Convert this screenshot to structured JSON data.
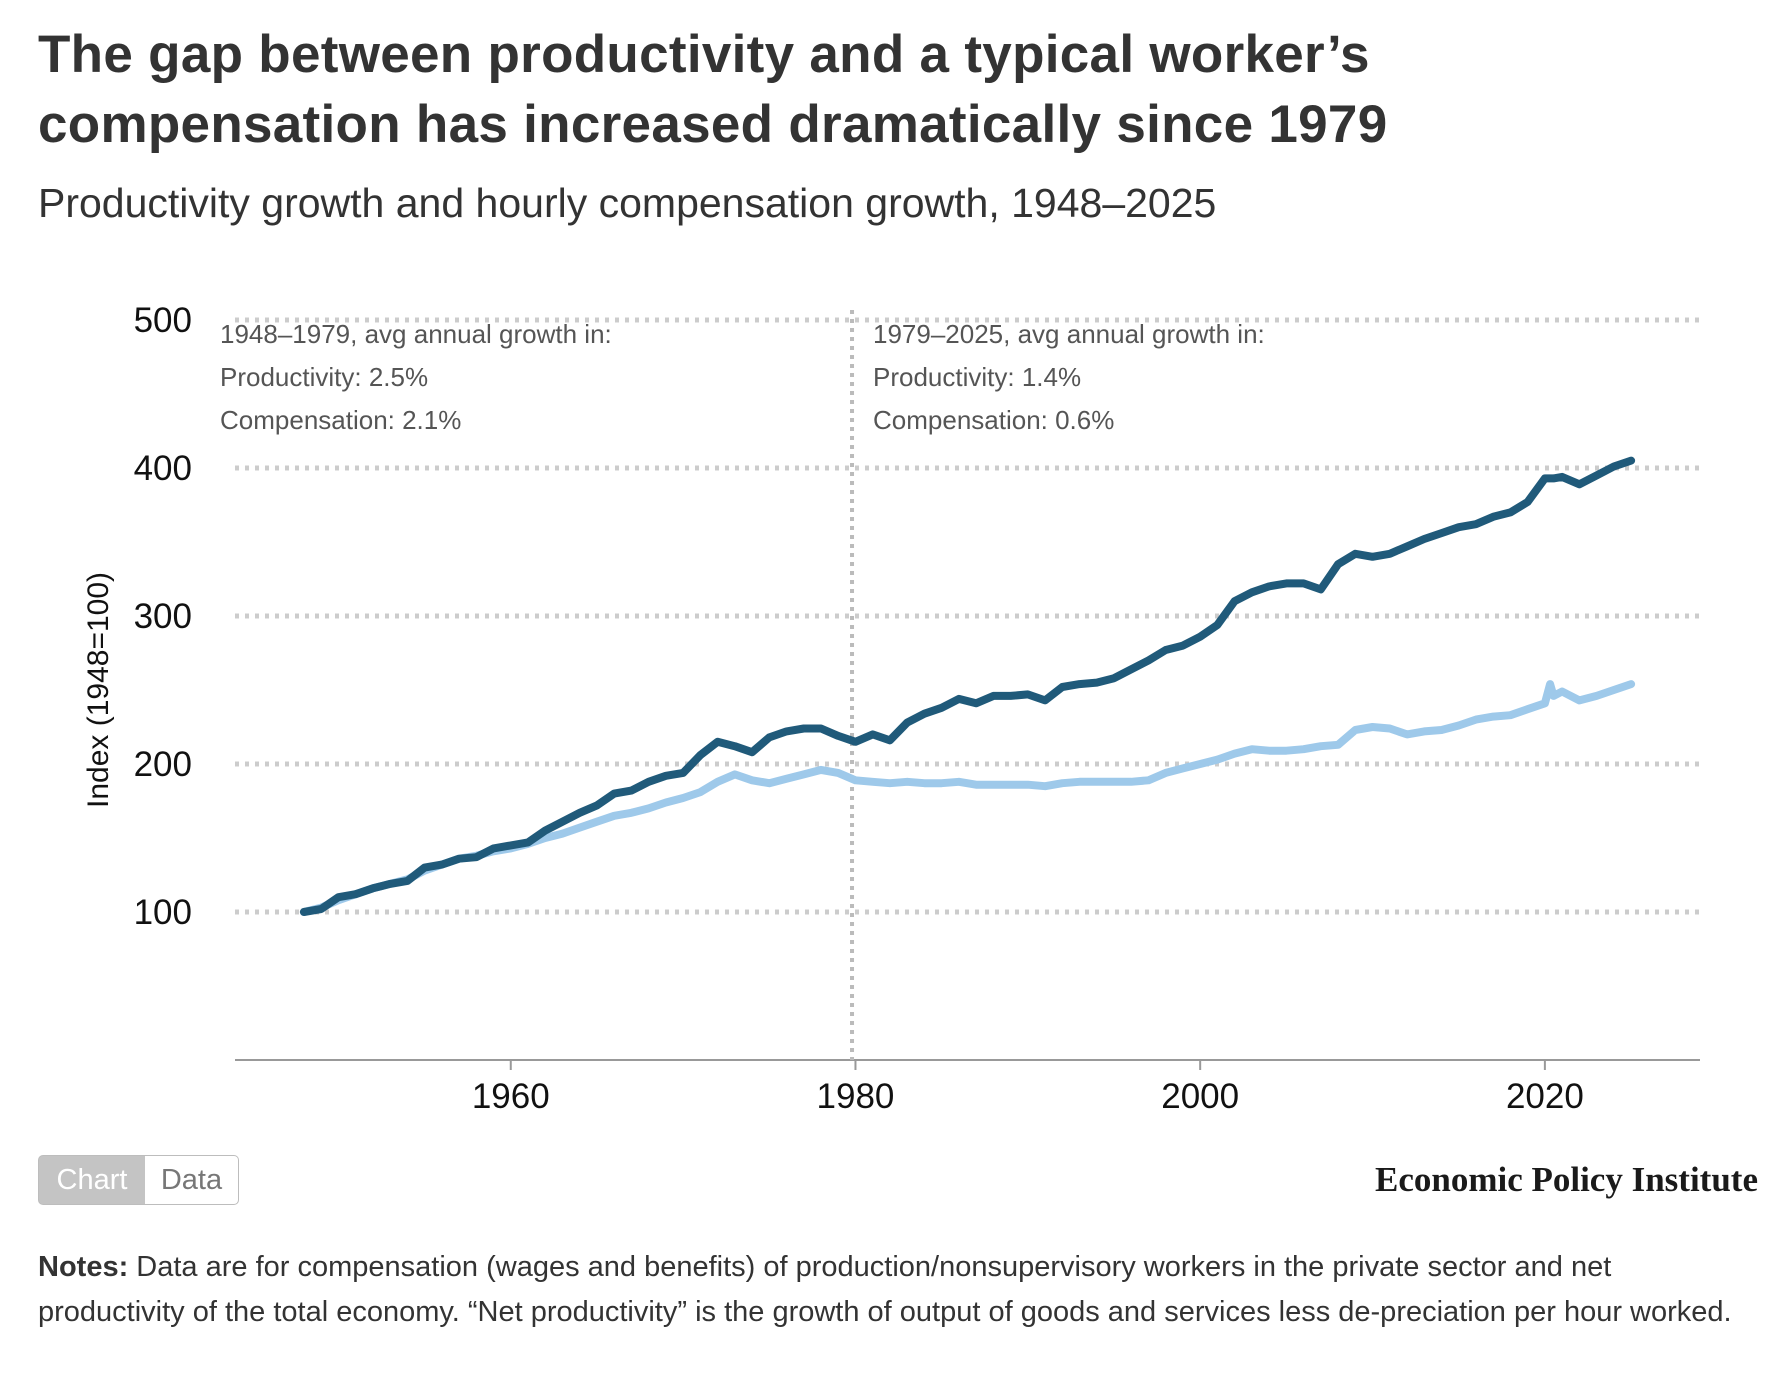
{
  "title": "The gap between productivity and a typical worker’s compensation has increased dramatically since 1979",
  "subtitle": "Productivity growth and hourly compensation growth, 1948–2025",
  "colors": {
    "productivity": "#205a7a",
    "compensation": "#9ec9ea",
    "grid": "#cccccc",
    "axis": "#999999"
  },
  "annotations": [
    {
      "lines": [
        "1948–1979, avg annual growth in:",
        "Productivity: 2.5%",
        "Compensation: 2.1%"
      ]
    },
    {
      "lines": [
        "1979–2025, avg annual growth in:",
        "Productivity: 1.4%",
        "Compensation: 0.6%"
      ]
    }
  ],
  "toggle": {
    "chart_label": "Chart",
    "data_label": "Data"
  },
  "publisher": "Economic Policy Institute",
  "notes": {
    "label": "Notes:",
    "text": " Data are for compensation (wages and benefits) of production/nonsupervisory workers in the private sector and net productivity of the total economy. “Net productivity” is the growth of output of goods and services less de-preciation per hour worked."
  },
  "chart_data": {
    "type": "line",
    "ylabel": "Index (1948=100)",
    "xlabel": "",
    "xlim": [
      1944,
      2029
    ],
    "ylim": [
      0,
      500
    ],
    "x_ticks": [
      1960,
      1980,
      2000,
      2020
    ],
    "y_ticks": [
      100,
      200,
      300,
      400,
      500
    ],
    "grid": true,
    "divider_year": 1979.8,
    "series": [
      {
        "key": "productivity",
        "x": [
          1948,
          1949,
          1950,
          1951,
          1952,
          1953,
          1954,
          1955,
          1956,
          1957,
          1958,
          1959,
          1960,
          1961,
          1962,
          1963,
          1964,
          1965,
          1966,
          1967,
          1968,
          1969,
          1970,
          1971,
          1972,
          1973,
          1974,
          1975,
          1976,
          1977,
          1978,
          1979,
          1980,
          1981,
          1982,
          1983,
          1984,
          1985,
          1986,
          1987,
          1988,
          1989,
          1990,
          1991,
          1992,
          1993,
          1994,
          1995,
          1996,
          1997,
          1998,
          1999,
          2000,
          2001,
          2002,
          2003,
          2004,
          2005,
          2006,
          2007,
          2008,
          2009,
          2010,
          2011,
          2012,
          2013,
          2014,
          2015,
          2016,
          2017,
          2018,
          2019,
          2020,
          2020.5,
          2021,
          2022,
          2023,
          2024,
          2025
        ],
        "values": [
          100,
          102,
          110,
          112,
          116,
          119,
          121,
          130,
          132,
          136,
          137,
          143,
          145,
          147,
          155,
          161,
          167,
          172,
          180,
          182,
          188,
          192,
          194,
          206,
          215,
          212,
          208,
          218,
          222,
          224,
          224,
          219,
          215,
          220,
          216,
          228,
          234,
          238,
          244,
          241,
          246,
          246,
          247,
          243,
          252,
          254,
          255,
          258,
          264,
          270,
          277,
          280,
          286,
          294,
          310,
          316,
          320,
          322,
          322,
          318,
          335,
          342,
          340,
          342,
          347,
          352,
          356,
          360,
          362,
          367,
          370,
          377,
          393,
          393,
          394,
          389,
          395,
          401,
          405
        ]
      },
      {
        "key": "compensation",
        "x": [
          1948,
          1949,
          1950,
          1951,
          1952,
          1953,
          1954,
          1955,
          1956,
          1957,
          1958,
          1959,
          1960,
          1961,
          1962,
          1963,
          1964,
          1965,
          1966,
          1967,
          1968,
          1969,
          1970,
          1971,
          1972,
          1973,
          1974,
          1975,
          1976,
          1977,
          1978,
          1979,
          1980,
          1981,
          1982,
          1983,
          1984,
          1985,
          1986,
          1987,
          1988,
          1989,
          1990,
          1991,
          1992,
          1993,
          1994,
          1995,
          1996,
          1997,
          1998,
          1999,
          2000,
          2001,
          2002,
          2003,
          2004,
          2005,
          2006,
          2007,
          2008,
          2009,
          2010,
          2011,
          2012,
          2013,
          2014,
          2015,
          2016,
          2017,
          2018,
          2019,
          2020,
          2020.3,
          2020.5,
          2021,
          2022,
          2023,
          2024,
          2025
        ],
        "values": [
          100,
          103,
          108,
          112,
          116,
          119,
          122,
          128,
          132,
          136,
          138,
          141,
          143,
          146,
          150,
          153,
          157,
          161,
          165,
          167,
          170,
          174,
          177,
          181,
          188,
          193,
          189,
          187,
          190,
          193,
          196,
          194,
          189,
          188,
          187,
          188,
          187,
          187,
          188,
          186,
          186,
          186,
          186,
          185,
          187,
          188,
          188,
          188,
          188,
          189,
          194,
          197,
          200,
          203,
          207,
          210,
          209,
          209,
          210,
          212,
          213,
          223,
          225,
          224,
          220,
          222,
          223,
          226,
          230,
          232,
          233,
          237,
          241,
          254,
          246,
          249,
          243,
          246,
          250,
          254
        ]
      }
    ]
  }
}
